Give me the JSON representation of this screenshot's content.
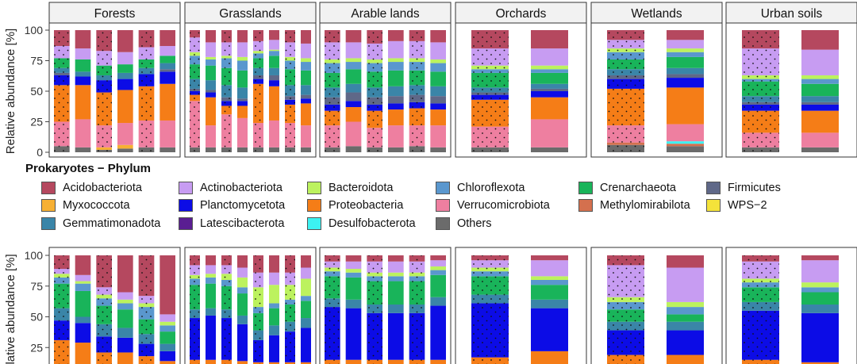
{
  "figure": {
    "ylabel": "Relative abundance [%]",
    "yticks": [
      "0",
      "25",
      "50",
      "75",
      "100"
    ],
    "facets": [
      "Forests",
      "Grasslands",
      "Arable lands",
      "Orchards",
      "Wetlands",
      "Urban soils"
    ]
  },
  "legend": {
    "title": "Prokaryotes − Phylum",
    "items": [
      {
        "label": "Acidobacteriota",
        "color": "#B5485F"
      },
      {
        "label": "Actinobacteriota",
        "color": "#C79CF2"
      },
      {
        "label": "Bacteroidota",
        "color": "#BCF25E"
      },
      {
        "label": "Chloroflexota",
        "color": "#5A97CE"
      },
      {
        "label": "Crenarchaeota",
        "color": "#19B45A"
      },
      {
        "label": "Firmicutes",
        "color": "#5F6888"
      },
      {
        "label": "Myxococcota",
        "color": "#F7B033"
      },
      {
        "label": "Planctomycetota",
        "color": "#0C0CE6"
      },
      {
        "label": "Proteobacteria",
        "color": "#F57D17"
      },
      {
        "label": "Verrucomicrobiota",
        "color": "#EE7FA0"
      },
      {
        "label": "Methylomirabilota",
        "color": "#D4704E"
      },
      {
        "label": "WPS−2",
        "color": "#F4E33A"
      },
      {
        "label": "Gemmatimonadota",
        "color": "#3A85A8"
      },
      {
        "label": "Latescibacterota",
        "color": "#5A1E92"
      },
      {
        "label": "Desulfobacterota",
        "color": "#3CF2F2"
      },
      {
        "label": "Others",
        "color": "#6B6B6B"
      }
    ]
  },
  "chart_data": [
    {
      "type": "bar",
      "stacked": true,
      "title": "",
      "xlabel": "",
      "ylabel": "Relative abundance [%]",
      "ylim": [
        0,
        100
      ],
      "facets": [
        {
          "name": "Forests",
          "samples": [
            {
              "others": 5,
              "verruco": 20,
              "proteo": 30,
              "plancto": 8,
              "firmi": 2,
              "gemma": 4,
              "creno": 8,
              "actino": 10,
              "acido": 13
            },
            {
              "others": 4,
              "verruco": 23,
              "proteo": 28,
              "plancto": 7,
              "gemma": 4,
              "creno": 10,
              "actino": 9,
              "acido": 15
            },
            {
              "others": 2,
              "myxo": 2,
              "verruco": 18,
              "proteo": 27,
              "plancto": 10,
              "gemma": 4,
              "creno": 8,
              "actino": 12,
              "acido": 17
            },
            {
              "others": 3,
              "myxo": 3,
              "verruco": 18,
              "proteo": 27,
              "plancto": 9,
              "gemma": 5,
              "creno": 7,
              "actino": 10,
              "acido": 18
            },
            {
              "others": 4,
              "verruco": 22,
              "proteo": 28,
              "plancto": 10,
              "gemma": 5,
              "creno": 7,
              "actino": 10,
              "acido": 14
            },
            {
              "others": 4,
              "verruco": 22,
              "proteo": 30,
              "plancto": 10,
              "firmi": 2,
              "gemma": 5,
              "creno": 6,
              "actino": 8,
              "acido": 13
            }
          ]
        },
        {
          "name": "Grasslands",
          "samples": [
            {
              "others": 4,
              "verruco": 38,
              "proteo": 5,
              "plancto": 3,
              "firmi": 2,
              "gemma": 8,
              "creno": 12,
              "chloro": 7,
              "bacter": 3,
              "actino": 12,
              "acido": 6
            },
            {
              "others": 4,
              "verruco": 18,
              "proteo": 23,
              "plancto": 4,
              "firmi": 2,
              "gemma": 8,
              "creno": 12,
              "chloro": 5,
              "bacter": 2,
              "actino": 12,
              "acido": 10
            },
            {
              "others": 4,
              "verruco": 27,
              "proteo": 7,
              "plancto": 4,
              "firmi": 3,
              "gemma": 10,
              "creno": 14,
              "chloro": 8,
              "bacter": 2,
              "actino": 11,
              "acido": 10
            },
            {
              "others": 4,
              "verruco": 24,
              "proteo": 10,
              "plancto": 4,
              "firmi": 2,
              "gemma": 9,
              "creno": 14,
              "chloro": 8,
              "bacter": 3,
              "actino": 12,
              "acido": 10
            },
            {
              "others": 4,
              "verruco": 20,
              "proteo": 32,
              "plancto": 4,
              "firmi": 3,
              "gemma": 6,
              "creno": 8,
              "chloro": 4,
              "bacter": 2,
              "actino": 8,
              "acido": 9
            },
            {
              "others": 4,
              "verruco": 22,
              "proteo": 28,
              "plancto": 5,
              "firmi": 4,
              "gemma": 6,
              "creno": 10,
              "chloro": 4,
              "bacter": 1,
              "actino": 8,
              "acido": 8
            },
            {
              "others": 4,
              "verruco": 20,
              "proteo": 15,
              "plancto": 4,
              "firmi": 3,
              "gemma": 9,
              "creno": 13,
              "chloro": 7,
              "bacter": 3,
              "actino": 12,
              "acido": 10
            },
            {
              "others": 4,
              "verruco": 18,
              "proteo": 18,
              "plancto": 4,
              "firmi": 3,
              "gemma": 8,
              "creno": 12,
              "chloro": 7,
              "bacter": 3,
              "actino": 12,
              "acido": 11
            }
          ]
        },
        {
          "name": "Arable lands",
          "samples": [
            {
              "others": 4,
              "verruco": 18,
              "proteo": 12,
              "plancto": 5,
              "firmi": 6,
              "gemma": 8,
              "creno": 12,
              "chloro": 8,
              "bacter": 3,
              "actino": 14,
              "acido": 10
            },
            {
              "others": 5,
              "verruco": 20,
              "proteo": 12,
              "plancto": 5,
              "firmi": 7,
              "gemma": 7,
              "creno": 12,
              "chloro": 6,
              "bacter": 3,
              "actino": 13,
              "acido": 10
            },
            {
              "others": 4,
              "verruco": 16,
              "proteo": 14,
              "plancto": 5,
              "firmi": 6,
              "gemma": 8,
              "creno": 13,
              "chloro": 7,
              "bacter": 3,
              "actino": 13,
              "acido": 11
            },
            {
              "others": 4,
              "verruco": 18,
              "proteo": 13,
              "plancto": 5,
              "firmi": 6,
              "gemma": 8,
              "creno": 13,
              "chloro": 7,
              "bacter": 3,
              "actino": 14,
              "acido": 9
            },
            {
              "others": 5,
              "verruco": 17,
              "proteo": 14,
              "plancto": 5,
              "firmi": 6,
              "gemma": 8,
              "creno": 12,
              "chloro": 7,
              "bacter": 3,
              "actino": 14,
              "acido": 9
            },
            {
              "others": 4,
              "verruco": 18,
              "proteo": 13,
              "plancto": 5,
              "firmi": 6,
              "gemma": 8,
              "creno": 12,
              "chloro": 7,
              "bacter": 3,
              "actino": 14,
              "acido": 10
            }
          ]
        },
        {
          "name": "Orchards",
          "samples": [
            {
              "others": 4,
              "verruco": 17,
              "proteo": 22,
              "plancto": 4,
              "firmi": 2,
              "gemma": 4,
              "creno": 12,
              "chloro": 3,
              "bacter": 3,
              "actino": 14,
              "acido": 15
            },
            {
              "others": 4,
              "verruco": 23,
              "proteo": 18,
              "plancto": 5,
              "firmi": 2,
              "gemma": 4,
              "creno": 9,
              "chloro": 3,
              "bacter": 3,
              "actino": 14,
              "acido": 15
            }
          ]
        },
        {
          "name": "Wetlands",
          "samples": [
            {
              "others": 6,
              "methyl": 2,
              "verruco": 14,
              "proteo": 30,
              "plancto": 8,
              "firmi": 3,
              "gemma": 5,
              "creno": 8,
              "chloro": 6,
              "bacter": 3,
              "actino": 7,
              "acido": 8
            },
            {
              "others": 5,
              "methyl": 2,
              "desulfo": 2,
              "verruco": 14,
              "proteo": 30,
              "plancto": 8,
              "firmi": 3,
              "gemma": 5,
              "creno": 9,
              "chloro": 4,
              "bacter": 3,
              "actino": 7,
              "acido": 8
            }
          ]
        },
        {
          "name": "Urban soils",
          "samples": [
            {
              "others": 4,
              "verruco": 12,
              "proteo": 18,
              "plancto": 5,
              "firmi": 2,
              "gemma": 5,
              "creno": 12,
              "chloro": 2,
              "bacter": 3,
              "actino": 22,
              "acido": 15
            },
            {
              "others": 4,
              "verruco": 12,
              "proteo": 18,
              "plancto": 5,
              "firmi": 2,
              "gemma": 5,
              "creno": 10,
              "chloro": 4,
              "bacter": 3,
              "actino": 21,
              "acido": 16
            }
          ]
        }
      ]
    },
    {
      "type": "bar",
      "stacked": true,
      "title": "",
      "xlabel": "",
      "ylabel": "Relative abundance [%]",
      "ylim": [
        0,
        100
      ],
      "facets": [
        {
          "name": "Forests",
          "samples": [
            {
              "others": 4,
              "verruco": 7,
              "proteo": 20,
              "plancto": 16,
              "gemma": 10,
              "creno": 20,
              "chloro": 5,
              "bacter": 3,
              "actino": 4,
              "acido": 11
            },
            {
              "others": 4,
              "verruco": 7,
              "proteo": 18,
              "plancto": 16,
              "gemma": 5,
              "creno": 21,
              "chloro": 6,
              "bacter": 2,
              "actino": 5,
              "acido": 16
            },
            {
              "others": 4,
              "verruco": 7,
              "proteo": 10,
              "plancto": 13,
              "gemma": 10,
              "creno": 15,
              "chloro": 6,
              "bacter": 3,
              "actino": 6,
              "acido": 26
            },
            {
              "others": 4,
              "verruco": 7,
              "proteo": 10,
              "plancto": 12,
              "gemma": 8,
              "creno": 15,
              "chloro": 5,
              "bacter": 3,
              "actino": 6,
              "acido": 30
            },
            {
              "others": 4,
              "verruco": 6,
              "proteo": 8,
              "plancto": 10,
              "gemma": 8,
              "creno": 12,
              "chloro": 10,
              "bacter": 3,
              "actino": 6,
              "acido": 33
            },
            {
              "others": 4,
              "verruco": 5,
              "proteo": 5,
              "plancto": 8,
              "gemma": 6,
              "creno": 10,
              "chloro": 5,
              "bacter": 3,
              "actino": 6,
              "acido": 48
            }
          ]
        },
        {
          "name": "Grasslands",
          "samples": [
            {
              "others": 4,
              "verruco": 3,
              "proteo": 8,
              "plancto": 34,
              "gemma": 7,
              "creno": 20,
              "chloro": 5,
              "bacter": 3,
              "actino": 8,
              "acido": 8
            },
            {
              "others": 4,
              "verruco": 3,
              "proteo": 8,
              "plancto": 36,
              "gemma": 6,
              "creno": 20,
              "chloro": 5,
              "bacter": 3,
              "actino": 7,
              "acido": 8
            },
            {
              "others": 4,
              "verruco": 3,
              "proteo": 8,
              "plancto": 34,
              "gemma": 7,
              "creno": 19,
              "chloro": 5,
              "bacter": 5,
              "actino": 7,
              "acido": 8
            },
            {
              "others": 4,
              "verruco": 3,
              "proteo": 7,
              "plancto": 30,
              "gemma": 7,
              "creno": 18,
              "chloro": 5,
              "bacter": 8,
              "actino": 8,
              "acido": 10
            },
            {
              "others": 4,
              "verruco": 3,
              "proteo": 6,
              "plancto": 18,
              "gemma": 8,
              "creno": 14,
              "chloro": 5,
              "bacter": 16,
              "actino": 12,
              "acido": 14
            },
            {
              "others": 4,
              "verruco": 3,
              "proteo": 6,
              "plancto": 22,
              "gemma": 8,
              "creno": 14,
              "chloro": 4,
              "bacter": 15,
              "actino": 10,
              "acido": 14
            },
            {
              "others": 4,
              "verruco": 3,
              "proteo": 6,
              "plancto": 25,
              "gemma": 8,
              "creno": 14,
              "chloro": 4,
              "bacter": 12,
              "actino": 10,
              "acido": 14
            },
            {
              "others": 4,
              "verruco": 3,
              "proteo": 6,
              "plancto": 28,
              "gemma": 8,
              "creno": 14,
              "chloro": 4,
              "bacter": 14,
              "actino": 9,
              "acido": 10
            }
          ]
        },
        {
          "name": "Arable lands",
          "samples": [
            {
              "others": 4,
              "verruco": 3,
              "proteo": 8,
              "plancto": 43,
              "gemma": 7,
              "creno": 18,
              "chloro": 4,
              "bacter": 3,
              "actino": 5,
              "acido": 5
            },
            {
              "others": 4,
              "verruco": 3,
              "proteo": 8,
              "plancto": 42,
              "gemma": 7,
              "creno": 18,
              "chloro": 4,
              "bacter": 3,
              "actino": 6,
              "acido": 5
            },
            {
              "others": 4,
              "verruco": 3,
              "proteo": 8,
              "plancto": 38,
              "gemma": 7,
              "creno": 19,
              "chloro": 4,
              "bacter": 3,
              "actino": 9,
              "acido": 5
            },
            {
              "others": 4,
              "verruco": 3,
              "proteo": 8,
              "plancto": 38,
              "gemma": 7,
              "creno": 19,
              "chloro": 4,
              "bacter": 3,
              "actino": 9,
              "acido": 5
            },
            {
              "others": 4,
              "verruco": 3,
              "proteo": 8,
              "plancto": 38,
              "gemma": 7,
              "creno": 19,
              "chloro": 4,
              "bacter": 3,
              "actino": 9,
              "acido": 5
            },
            {
              "others": 4,
              "verruco": 3,
              "proteo": 8,
              "plancto": 44,
              "gemma": 7,
              "creno": 18,
              "chloro": 4,
              "bacter": 3,
              "actino": 5,
              "acido": 4
            }
          ]
        },
        {
          "name": "Orchards",
          "samples": [
            {
              "others": 4,
              "verruco": 3,
              "proteo": 10,
              "plancto": 44,
              "gemma": 7,
              "creno": 15,
              "chloro": 4,
              "bacter": 3,
              "actino": 6,
              "acido": 4
            },
            {
              "others": 4,
              "verruco": 3,
              "proteo": 15,
              "plancto": 35,
              "gemma": 7,
              "creno": 12,
              "chloro": 4,
              "bacter": 3,
              "actino": 13,
              "acido": 4
            }
          ]
        },
        {
          "name": "Wetlands",
          "samples": [
            {
              "others": 4,
              "verruco": 3,
              "proteo": 12,
              "plancto": 20,
              "gemma": 7,
              "creno": 10,
              "chloro": 6,
              "bacter": 4,
              "actino": 26,
              "acido": 8
            },
            {
              "others": 4,
              "verruco": 3,
              "proteo": 12,
              "plancto": 20,
              "gemma": 7,
              "creno": 6,
              "chloro": 6,
              "bacter": 4,
              "actino": 28,
              "acido": 10
            }
          ]
        },
        {
          "name": "Urban soils",
          "samples": [
            {
              "others": 4,
              "verruco": 3,
              "proteo": 8,
              "plancto": 40,
              "gemma": 7,
              "creno": 12,
              "chloro": 4,
              "bacter": 3,
              "actino": 14,
              "acido": 5
            },
            {
              "others": 4,
              "verruco": 3,
              "proteo": 6,
              "plancto": 40,
              "gemma": 7,
              "creno": 10,
              "chloro": 4,
              "bacter": 4,
              "actino": 18,
              "acido": 4
            }
          ]
        }
      ]
    }
  ]
}
